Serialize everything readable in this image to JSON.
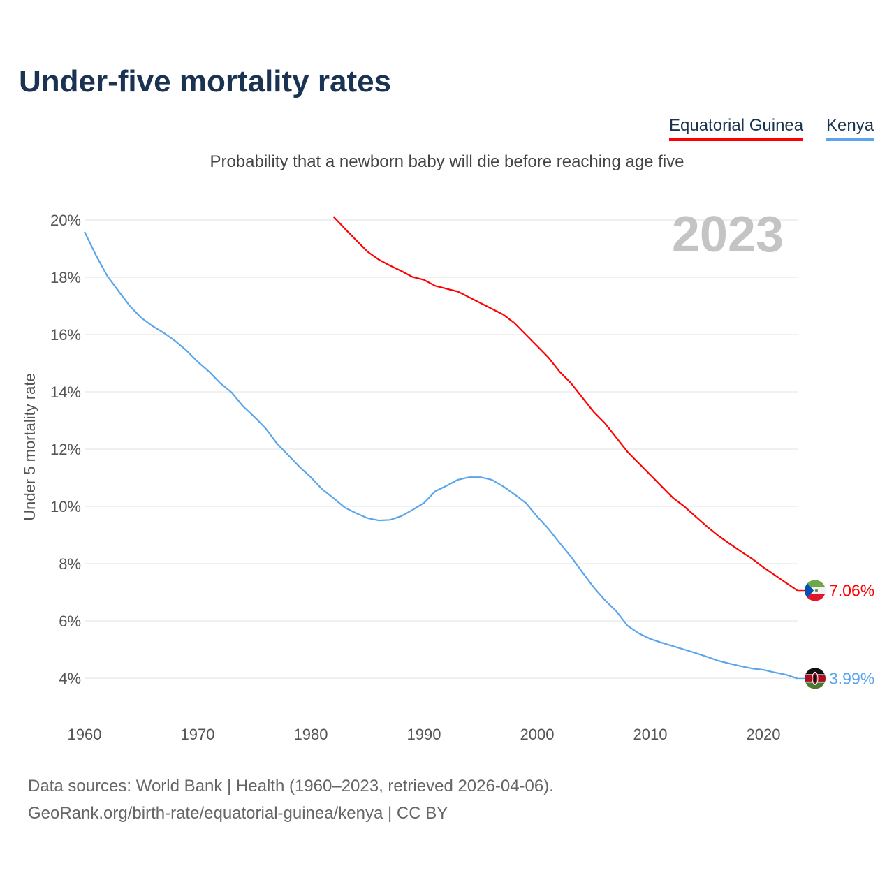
{
  "title": "Under-five mortality rates",
  "subtitle": "Probability that a newborn baby will die before reaching age five",
  "footer": {
    "line1": "Data sources: World Bank | Health (1960–2023, retrieved 2026-04-06).",
    "line2": "GeoRank.org/birth-rate/equatorial-guinea/kenya | CC BY"
  },
  "chart_data": {
    "type": "line",
    "title": "Under-five mortality rates",
    "subtitle": "Probability that a newborn baby will die before reaching age five",
    "xlabel": "",
    "ylabel": "Under 5 mortality rate",
    "year_label": "2023",
    "xlim": [
      1960,
      2023
    ],
    "ylim": [
      3,
      20.5
    ],
    "x_ticks": [
      "1960",
      "1970",
      "1980",
      "1990",
      "2000",
      "2010",
      "2020"
    ],
    "y_ticks": [
      "4%",
      "6%",
      "8%",
      "10%",
      "12%",
      "14%",
      "16%",
      "18%",
      "20%"
    ],
    "grid": true,
    "legend_position": "top-right",
    "series": [
      {
        "name": "Equatorial Guinea",
        "color": "#ff0000",
        "flag": "equatorial-guinea-flag-icon",
        "end_label": "7.06%",
        "x": [
          1982,
          1983,
          1984,
          1985,
          1986,
          1987,
          1988,
          1989,
          1990,
          1991,
          1992,
          1993,
          1994,
          1995,
          1996,
          1997,
          1998,
          1999,
          2000,
          2001,
          2002,
          2003,
          2004,
          2005,
          2006,
          2007,
          2008,
          2009,
          2010,
          2011,
          2012,
          2013,
          2014,
          2015,
          2016,
          2017,
          2018,
          2019,
          2020,
          2021,
          2022,
          2023
        ],
        "values": [
          20.12,
          19.7,
          19.3,
          18.9,
          18.62,
          18.41,
          18.22,
          18.01,
          17.91,
          17.7,
          17.6,
          17.5,
          17.3,
          17.1,
          16.9,
          16.7,
          16.4,
          16.0,
          15.6,
          15.2,
          14.7,
          14.3,
          13.8,
          13.3,
          12.9,
          12.4,
          11.9,
          11.5,
          11.1,
          10.7,
          10.3,
          10.0,
          9.65,
          9.3,
          8.98,
          8.7,
          8.43,
          8.17,
          7.87,
          7.6,
          7.33,
          7.06
        ]
      },
      {
        "name": "Kenya",
        "color": "#5aa5ec",
        "flag": "kenya-flag-icon",
        "end_label": "3.99%",
        "x": [
          1960,
          1961,
          1962,
          1963,
          1964,
          1965,
          1966,
          1967,
          1968,
          1969,
          1970,
          1971,
          1972,
          1973,
          1974,
          1975,
          1976,
          1977,
          1978,
          1979,
          1980,
          1981,
          1982,
          1983,
          1984,
          1985,
          1986,
          1987,
          1988,
          1989,
          1990,
          1991,
          1992,
          1993,
          1994,
          1995,
          1996,
          1997,
          1998,
          1999,
          2000,
          2001,
          2002,
          2003,
          2004,
          2005,
          2006,
          2007,
          2008,
          2009,
          2010,
          2011,
          2012,
          2013,
          2014,
          2015,
          2016,
          2017,
          2018,
          2019,
          2020,
          2021,
          2022,
          2023
        ],
        "values": [
          19.59,
          18.78,
          18.05,
          17.52,
          17.0,
          16.59,
          16.3,
          16.06,
          15.78,
          15.45,
          15.05,
          14.71,
          14.3,
          13.98,
          13.5,
          13.13,
          12.73,
          12.2,
          11.79,
          11.38,
          11.02,
          10.6,
          10.29,
          9.96,
          9.76,
          9.59,
          9.51,
          9.53,
          9.66,
          9.88,
          10.12,
          10.53,
          10.72,
          10.93,
          11.02,
          11.02,
          10.93,
          10.7,
          10.42,
          10.12,
          9.65,
          9.22,
          8.72,
          8.24,
          7.7,
          7.17,
          6.72,
          6.34,
          5.83,
          5.56,
          5.37,
          5.24,
          5.12,
          5.0,
          4.88,
          4.75,
          4.61,
          4.51,
          4.42,
          4.34,
          4.29,
          4.2,
          4.12,
          3.99
        ]
      }
    ]
  }
}
